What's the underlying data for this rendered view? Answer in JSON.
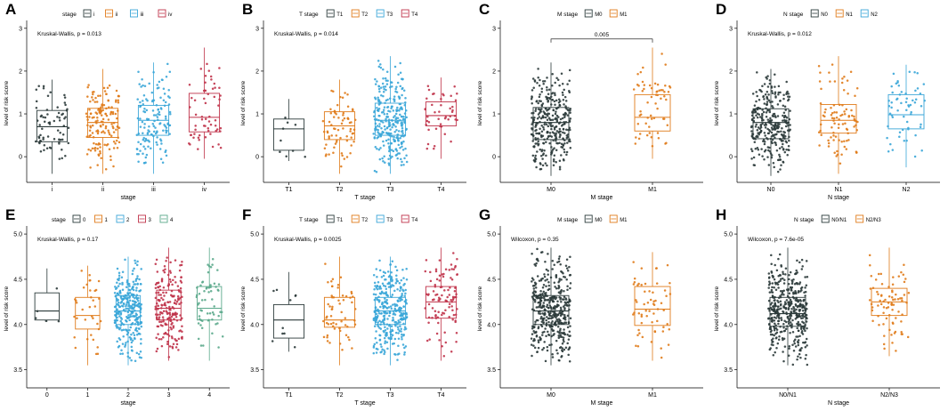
{
  "figure": {
    "ylabel": "level of risk score",
    "legend_title_suffix": ""
  },
  "chart_data": [
    {
      "type": "box",
      "panel": "A",
      "legend_title": "stage",
      "stat": "Kruskal-Wallis, p = 0.013",
      "xlabel": "stage",
      "ylabel": "level of risk score",
      "ylim": [
        -0.6,
        3.1
      ],
      "yticks": [
        0,
        1,
        2,
        3
      ],
      "groups": [
        {
          "name": "i",
          "color": "#2b3a3a",
          "q1": 0.35,
          "median": 0.7,
          "q3": 1.08,
          "wmin": -0.4,
          "wmax": 1.8,
          "n": 70
        },
        {
          "name": "ii",
          "color": "#e07b1a",
          "q1": 0.45,
          "median": 0.8,
          "q3": 1.13,
          "wmin": -0.4,
          "wmax": 2.05,
          "n": 150
        },
        {
          "name": "iii",
          "color": "#3aa6d8",
          "q1": 0.5,
          "median": 0.85,
          "q3": 1.2,
          "wmin": -0.4,
          "wmax": 2.2,
          "n": 140
        },
        {
          "name": "iv",
          "color": "#c0334a",
          "q1": 0.58,
          "median": 0.92,
          "q3": 1.48,
          "wmin": -0.05,
          "wmax": 2.55,
          "n": 60
        }
      ]
    },
    {
      "type": "box",
      "panel": "B",
      "legend_title": "T stage",
      "stat": "Kruskal-Wallis, p = 0.014",
      "xlabel": "T stage",
      "ylabel": "level of risk score",
      "ylim": [
        -0.6,
        3.1
      ],
      "yticks": [
        0,
        1,
        2,
        3
      ],
      "groups": [
        {
          "name": "T1",
          "color": "#2b3a3a",
          "q1": 0.15,
          "median": 0.65,
          "q3": 0.88,
          "wmin": -0.1,
          "wmax": 1.35,
          "n": 9
        },
        {
          "name": "T2",
          "color": "#e07b1a",
          "q1": 0.4,
          "median": 0.72,
          "q3": 1.05,
          "wmin": -0.4,
          "wmax": 1.8,
          "n": 70
        },
        {
          "name": "T3",
          "color": "#3aa6d8",
          "q1": 0.5,
          "median": 0.85,
          "q3": 1.25,
          "wmin": -0.4,
          "wmax": 2.35,
          "n": 280
        },
        {
          "name": "T4",
          "color": "#c0334a",
          "q1": 0.72,
          "median": 0.96,
          "q3": 1.28,
          "wmin": -0.05,
          "wmax": 1.85,
          "n": 45
        }
      ]
    },
    {
      "type": "box",
      "panel": "C",
      "legend_title": "M stage",
      "stat": "",
      "xlabel": "M stage",
      "ylabel": "level of risk score",
      "ylim": [
        -0.6,
        3.1
      ],
      "yticks": [
        0,
        1,
        2,
        3
      ],
      "bracket": {
        "label": "0.005",
        "y": 2.75
      },
      "groups": [
        {
          "name": "M0",
          "color": "#2b3a3a",
          "q1": 0.4,
          "median": 0.8,
          "q3": 1.15,
          "wmin": -0.45,
          "wmax": 2.2,
          "n": 330
        },
        {
          "name": "M1",
          "color": "#e07b1a",
          "q1": 0.6,
          "median": 0.92,
          "q3": 1.45,
          "wmin": -0.05,
          "wmax": 2.55,
          "n": 60
        }
      ]
    },
    {
      "type": "box",
      "panel": "D",
      "legend_title": "N stage",
      "stat": "Kruskal-Wallis, p = 0.012",
      "xlabel": "N stage",
      "ylabel": "level of risk score",
      "ylim": [
        -0.6,
        3.1
      ],
      "yticks": [
        0,
        1,
        2,
        3
      ],
      "groups": [
        {
          "name": "N0",
          "color": "#2b3a3a",
          "q1": 0.42,
          "median": 0.8,
          "q3": 1.12,
          "wmin": -0.45,
          "wmax": 2.05,
          "n": 300
        },
        {
          "name": "N1",
          "color": "#e07b1a",
          "q1": 0.55,
          "median": 0.85,
          "q3": 1.22,
          "wmin": -0.4,
          "wmax": 2.35,
          "n": 90
        },
        {
          "name": "N2",
          "color": "#3aa6d8",
          "q1": 0.65,
          "median": 0.98,
          "q3": 1.45,
          "wmin": -0.25,
          "wmax": 2.15,
          "n": 60
        }
      ]
    },
    {
      "type": "box",
      "panel": "E",
      "legend_title": "stage",
      "stat": "Kruskal-Wallis, p = 0.17",
      "xlabel": "stage",
      "ylabel": "level of risk score",
      "ylim": [
        3.3,
        5.05
      ],
      "yticks": [
        3.5,
        4.0,
        4.5,
        5.0
      ],
      "yticklabels": [
        "3.5",
        "4.0",
        "4.5",
        "5.0"
      ],
      "groups": [
        {
          "name": "0",
          "color": "#2b3a3a",
          "q1": 4.05,
          "median": 4.15,
          "q3": 4.35,
          "wmin": 4.03,
          "wmax": 4.62,
          "n": 5
        },
        {
          "name": "1",
          "color": "#e07b1a",
          "q1": 3.95,
          "median": 4.1,
          "q3": 4.3,
          "wmin": 3.55,
          "wmax": 4.65,
          "n": 35
        },
        {
          "name": "2",
          "color": "#3aa6d8",
          "q1": 4.0,
          "median": 4.15,
          "q3": 4.32,
          "wmin": 3.55,
          "wmax": 4.75,
          "n": 300
        },
        {
          "name": "3",
          "color": "#c0334a",
          "q1": 4.05,
          "median": 4.18,
          "q3": 4.38,
          "wmin": 3.6,
          "wmax": 4.85,
          "n": 200
        },
        {
          "name": "4",
          "color": "#5aa98b",
          "q1": 4.05,
          "median": 4.18,
          "q3": 4.42,
          "wmin": 3.6,
          "wmax": 4.85,
          "n": 60
        }
      ]
    },
    {
      "type": "box",
      "panel": "F",
      "legend_title": "T stage",
      "stat": "Kruskal-Wallis, p = 0.0025",
      "xlabel": "T stage",
      "ylabel": "level of risk score",
      "ylim": [
        3.3,
        5.05
      ],
      "yticks": [
        3.5,
        4.0,
        4.5,
        5.0
      ],
      "yticklabels": [
        "3.5",
        "4.0",
        "4.5",
        "5.0"
      ],
      "groups": [
        {
          "name": "T1",
          "color": "#2b3a3a",
          "q1": 3.85,
          "median": 4.05,
          "q3": 4.22,
          "wmin": 3.7,
          "wmax": 4.58,
          "n": 10
        },
        {
          "name": "T2",
          "color": "#e07b1a",
          "q1": 3.97,
          "median": 4.05,
          "q3": 4.3,
          "wmin": 3.55,
          "wmax": 4.75,
          "n": 60
        },
        {
          "name": "T3",
          "color": "#3aa6d8",
          "q1": 4.0,
          "median": 4.15,
          "q3": 4.3,
          "wmin": 3.55,
          "wmax": 4.75,
          "n": 330
        },
        {
          "name": "T4",
          "color": "#c0334a",
          "q1": 4.07,
          "median": 4.25,
          "q3": 4.42,
          "wmin": 3.6,
          "wmax": 4.85,
          "n": 100
        }
      ]
    },
    {
      "type": "box",
      "panel": "G",
      "legend_title": "M stage",
      "stat": "Wilcoxon, p = 0.35",
      "xlabel": "M stage",
      "ylabel": "level of risk score",
      "ylim": [
        3.3,
        5.05
      ],
      "yticks": [
        3.5,
        4.0,
        4.5,
        5.0
      ],
      "yticklabels": [
        "3.5",
        "4.0",
        "4.5",
        "5.0"
      ],
      "groups": [
        {
          "name": "M0",
          "color": "#2b3a3a",
          "q1": 4.0,
          "median": 4.15,
          "q3": 4.32,
          "wmin": 3.55,
          "wmax": 4.85,
          "n": 420
        },
        {
          "name": "M1",
          "color": "#e07b1a",
          "q1": 3.99,
          "median": 4.17,
          "q3": 4.42,
          "wmin": 3.6,
          "wmax": 4.8,
          "n": 60
        }
      ]
    },
    {
      "type": "box",
      "panel": "H",
      "legend_title": "N stage",
      "stat": "Wilcoxon, p = 7.6e-05",
      "xlabel": "N stage",
      "ylabel": "level of risk score",
      "ylim": [
        3.3,
        5.05
      ],
      "yticks": [
        3.5,
        4.0,
        4.5,
        5.0
      ],
      "yticklabels": [
        "3.5",
        "4.0",
        "4.5",
        "5.0"
      ],
      "groups": [
        {
          "name": "N0/N1",
          "color": "#2b3a3a",
          "q1": 3.98,
          "median": 4.12,
          "q3": 4.3,
          "wmin": 3.55,
          "wmax": 4.85,
          "n": 420
        },
        {
          "name": "N2/N3",
          "color": "#e07b1a",
          "q1": 4.1,
          "median": 4.25,
          "q3": 4.4,
          "wmin": 3.65,
          "wmax": 4.85,
          "n": 80
        }
      ]
    }
  ]
}
